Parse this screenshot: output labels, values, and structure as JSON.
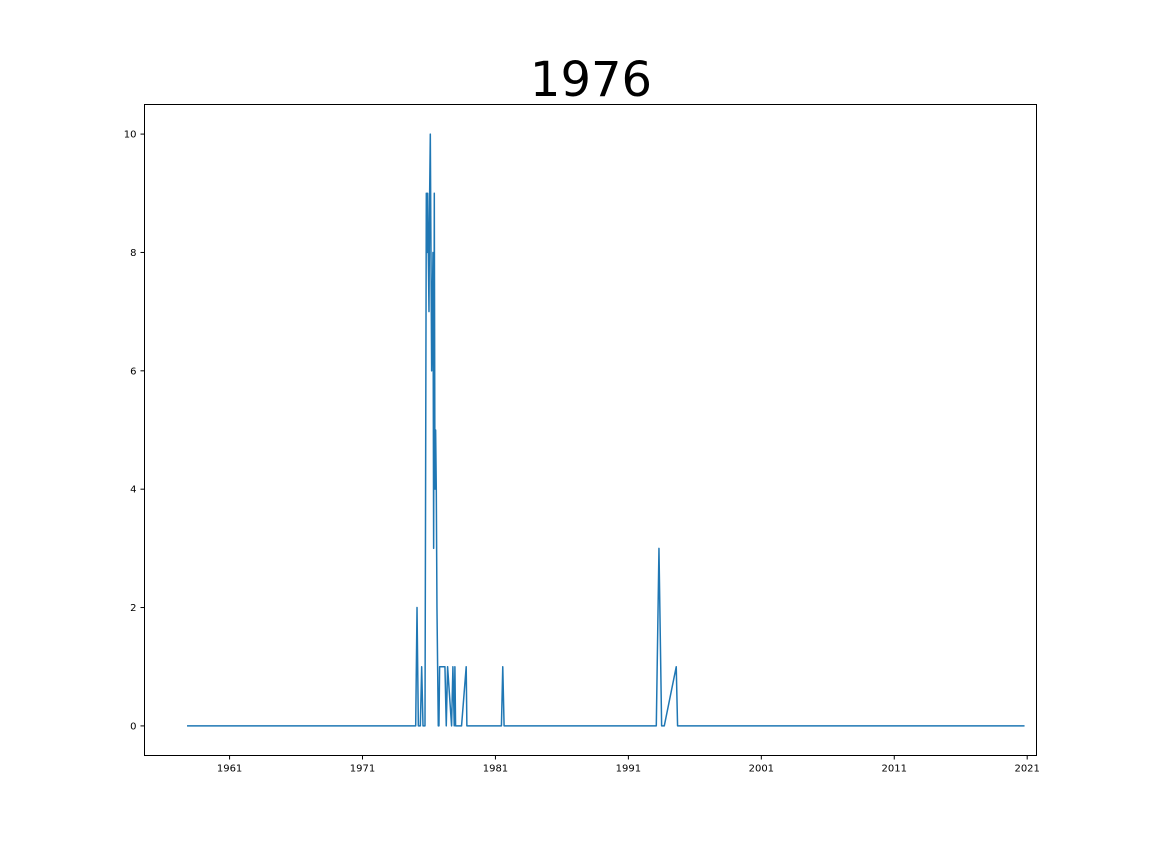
{
  "chart_data": {
    "type": "line",
    "title": "1976",
    "xlabel": "",
    "ylabel": "",
    "xlim": [
      1954.6,
      2021.7
    ],
    "ylim": [
      -0.5,
      10.5
    ],
    "xticks": [
      1961,
      1971,
      1981,
      1991,
      2001,
      2011,
      2021
    ],
    "yticks": [
      0,
      2,
      4,
      6,
      8,
      10
    ],
    "grid": false,
    "legend": "none",
    "series": [
      {
        "color": "#1f77b4",
        "x": [
          1957.8,
          1975.0,
          1975.1,
          1975.2,
          1975.35,
          1975.45,
          1975.55,
          1975.7,
          1975.8,
          1975.85,
          1975.9,
          1976.0,
          1976.05,
          1976.1,
          1976.2,
          1976.3,
          1976.35,
          1976.4,
          1976.45,
          1976.5,
          1976.55,
          1976.6,
          1976.65,
          1976.7,
          1976.75,
          1976.8,
          1976.85,
          1976.9,
          1977.0,
          1977.1,
          1977.2,
          1977.3,
          1977.4,
          1977.7,
          1977.8,
          1977.9,
          1977.95,
          1978.0,
          1978.05,
          1978.1,
          1978.2,
          1978.3,
          1978.4,
          1978.45,
          1978.8,
          1978.85,
          1978.9,
          1978.95,
          1981.45,
          1981.55,
          1981.65,
          1993.1,
          1993.3,
          1993.5,
          1993.7,
          1994.6,
          1994.7,
          1994.8,
          2020.8
        ],
        "y": [
          0,
          0,
          2,
          0,
          0,
          1,
          0,
          0,
          9,
          8,
          9,
          7,
          9,
          10,
          6,
          8,
          3,
          9,
          4,
          5,
          4,
          2,
          1,
          0,
          0,
          1,
          1,
          1,
          1,
          1,
          1,
          0,
          1,
          0,
          1,
          0,
          1,
          0,
          0,
          0,
          0,
          0,
          0,
          0,
          1,
          0,
          0,
          0,
          0,
          1,
          0,
          0,
          3,
          0,
          0,
          1,
          0,
          0,
          0
        ]
      }
    ]
  }
}
